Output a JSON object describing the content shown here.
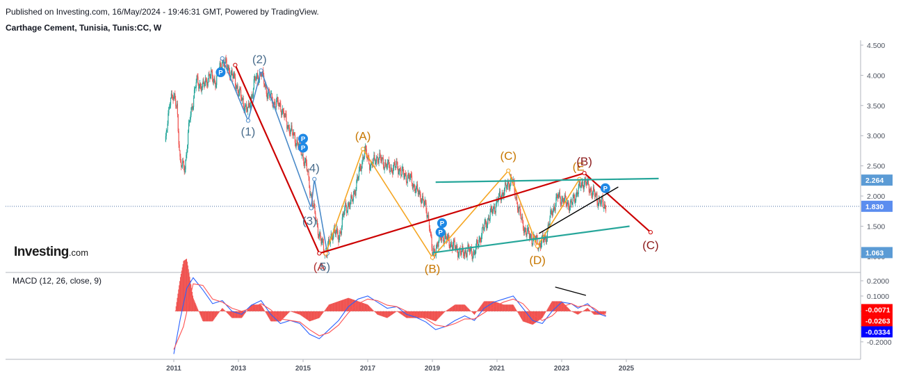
{
  "header": {
    "published": "Published on Investing.com, 16/May/2024 - 19:46:31 GMT, Powered by TradingView.",
    "symbol": "Carthage Cement, Tunisia, Tunis:CC, W"
  },
  "logo": {
    "brand": "Investing",
    "suffix": ".com"
  },
  "colors": {
    "red": "#cc0000",
    "orange": "#f5a623",
    "blue_wave": "#4a8ac9",
    "teal": "#26a69a",
    "black": "#000000",
    "candle_up": "#26a69a",
    "candle_down": "#ef5350",
    "macd_line": "#2962ff",
    "signal_line": "#ff5252",
    "hist": "#ef5350",
    "price_badge_top": "#5b9bd5",
    "price_badge_last": "#5b8def",
    "macd_badge_red": "#ff0000",
    "macd_badge_blue": "#0000ff"
  },
  "chart_data": [
    {
      "type": "line",
      "panel": "price",
      "title": "Carthage Cement, Tunisia, Tunis:CC, W",
      "x_ticks": [
        "2011",
        "2013",
        "2015",
        "2017",
        "2019",
        "2021",
        "2023",
        "2025"
      ],
      "y_ticks": [
        "1.000",
        "1.500",
        "2.000",
        "2.500",
        "3.000",
        "3.500",
        "4.000",
        "4.500"
      ],
      "ylim": [
        0.78,
        4.58
      ],
      "price_labels": [
        "2.264",
        "1.830",
        "1.063"
      ],
      "last_price": 1.83,
      "series": [
        {
          "points": [
            [
              2010.75,
              2.9
            ],
            [
              2010.9,
              3.7
            ],
            [
              2011.1,
              3.5
            ],
            [
              2011.2,
              2.5
            ],
            [
              2011.35,
              2.5
            ],
            [
              2011.5,
              3.3
            ],
            [
              2011.7,
              3.9
            ],
            [
              2011.9,
              3.8
            ],
            [
              2012.1,
              4.0
            ],
            [
              2012.3,
              3.9
            ],
            [
              2012.5,
              4.25
            ],
            [
              2012.7,
              4.1
            ],
            [
              2012.9,
              3.9
            ],
            [
              2013.1,
              3.6
            ],
            [
              2013.3,
              3.4
            ],
            [
              2013.5,
              3.9
            ],
            [
              2013.7,
              4.05
            ],
            [
              2013.9,
              3.7
            ],
            [
              2014.1,
              3.55
            ],
            [
              2014.3,
              3.5
            ],
            [
              2014.5,
              3.2
            ],
            [
              2014.7,
              3.0
            ],
            [
              2014.9,
              2.8
            ],
            [
              2015.1,
              2.5
            ],
            [
              2015.25,
              2.0
            ],
            [
              2015.4,
              1.6
            ],
            [
              2015.55,
              1.25
            ],
            [
              2015.7,
              1.05
            ],
            [
              2015.8,
              1.2
            ],
            [
              2015.95,
              1.45
            ],
            [
              2016.1,
              1.3
            ],
            [
              2016.3,
              1.8
            ],
            [
              2016.5,
              1.9
            ],
            [
              2016.7,
              2.3
            ],
            [
              2016.9,
              2.75
            ],
            [
              2017.1,
              2.5
            ],
            [
              2017.3,
              2.65
            ],
            [
              2017.5,
              2.55
            ],
            [
              2017.7,
              2.45
            ],
            [
              2017.9,
              2.5
            ],
            [
              2018.1,
              2.35
            ],
            [
              2018.3,
              2.3
            ],
            [
              2018.5,
              2.1
            ],
            [
              2018.7,
              1.95
            ],
            [
              2018.9,
              1.6
            ],
            [
              2019.0,
              1.0
            ],
            [
              2019.15,
              1.2
            ],
            [
              2019.3,
              1.35
            ],
            [
              2019.5,
              1.25
            ],
            [
              2019.7,
              1.15
            ],
            [
              2019.9,
              1.05
            ],
            [
              2020.1,
              1.1
            ],
            [
              2020.3,
              1.05
            ],
            [
              2020.5,
              1.35
            ],
            [
              2020.7,
              1.6
            ],
            [
              2020.9,
              1.8
            ],
            [
              2021.1,
              2.0
            ],
            [
              2021.3,
              2.15
            ],
            [
              2021.45,
              2.3
            ],
            [
              2021.6,
              1.95
            ],
            [
              2021.75,
              1.6
            ],
            [
              2021.9,
              1.4
            ],
            [
              2022.1,
              1.3
            ],
            [
              2022.3,
              1.2
            ],
            [
              2022.5,
              1.3
            ],
            [
              2022.7,
              1.75
            ],
            [
              2022.9,
              2.0
            ],
            [
              2023.1,
              1.9
            ],
            [
              2023.3,
              1.85
            ],
            [
              2023.5,
              2.1
            ],
            [
              2023.7,
              2.25
            ],
            [
              2023.9,
              2.1
            ],
            [
              2024.1,
              1.95
            ],
            [
              2024.3,
              1.85
            ],
            [
              2024.37,
              1.83
            ]
          ],
          "color": "#26a69a"
        }
      ],
      "wave_labels": [
        {
          "text": "(1)",
          "x": 2013.3,
          "y": 3.0,
          "color": "#4a6d8c"
        },
        {
          "text": "(2)",
          "x": 2013.65,
          "y": 4.2,
          "color": "#4a6d8c"
        },
        {
          "text": "(3)",
          "x": 2015.2,
          "y": 1.52,
          "color": "#4a6d8c"
        },
        {
          "text": "4)",
          "x": 2015.35,
          "y": 2.4,
          "color": "#4a6d8c"
        },
        {
          "text": "(A)",
          "x": 2016.85,
          "y": 2.93,
          "color": "#c77700"
        },
        {
          "text": "(A",
          "x": 2015.5,
          "y": 0.76,
          "color": "#b03030"
        },
        {
          "text": "5)",
          "x": 2015.68,
          "y": 0.76,
          "color": "#4a6d8c"
        },
        {
          "text": "(B)",
          "x": 2019.0,
          "y": 0.73,
          "color": "#c77700"
        },
        {
          "text": "(C)",
          "x": 2021.35,
          "y": 2.6,
          "color": "#c77700"
        },
        {
          "text": "(D)",
          "x": 2022.25,
          "y": 0.87,
          "color": "#c77700"
        },
        {
          "text": "(E",
          "x": 2023.52,
          "y": 2.42,
          "color": "#c77700"
        },
        {
          "text": "(B)",
          "x": 2023.7,
          "y": 2.51,
          "color": "#8b1a1a"
        },
        {
          "text": "(C)",
          "x": 2025.75,
          "y": 1.12,
          "color": "#8b1a1a"
        }
      ]
    },
    {
      "type": "line",
      "panel": "macd",
      "title": "MACD (12, 26, close, 9)",
      "y_ticks": [
        "0.2000",
        "0.1000",
        "0.0000",
        "-0.1000",
        "-0.2000"
      ],
      "ylim": [
        -0.31,
        0.25
      ],
      "value_labels": [
        "-0.0071",
        "-0.0263",
        "-0.0334"
      ],
      "series": [
        {
          "name": "MACD",
          "values": [
            [
              2011.0,
              -0.28
            ],
            [
              2011.2,
              -0.05
            ],
            [
              2011.4,
              0.15
            ],
            [
              2011.6,
              0.22
            ],
            [
              2011.9,
              0.14
            ],
            [
              2012.2,
              0.05
            ],
            [
              2012.5,
              0.07
            ],
            [
              2012.8,
              0.0
            ],
            [
              2013.1,
              -0.02
            ],
            [
              2013.4,
              0.04
            ],
            [
              2013.7,
              0.07
            ],
            [
              2014.0,
              -0.02
            ],
            [
              2014.3,
              -0.08
            ],
            [
              2014.6,
              -0.06
            ],
            [
              2014.9,
              -0.08
            ],
            [
              2015.2,
              -0.15
            ],
            [
              2015.5,
              -0.18
            ],
            [
              2015.8,
              -0.12
            ],
            [
              2016.1,
              -0.06
            ],
            [
              2016.4,
              0.03
            ],
            [
              2016.7,
              0.08
            ],
            [
              2017.0,
              0.1
            ],
            [
              2017.3,
              0.06
            ],
            [
              2017.6,
              0.02
            ],
            [
              2017.9,
              0.03
            ],
            [
              2018.2,
              -0.02
            ],
            [
              2018.5,
              -0.04
            ],
            [
              2018.8,
              -0.07
            ],
            [
              2019.1,
              -0.12
            ],
            [
              2019.4,
              -0.1
            ],
            [
              2019.7,
              -0.06
            ],
            [
              2020.0,
              -0.03
            ],
            [
              2020.3,
              -0.06
            ],
            [
              2020.6,
              0.02
            ],
            [
              2020.9,
              0.06
            ],
            [
              2021.2,
              0.08
            ],
            [
              2021.5,
              0.1
            ],
            [
              2021.8,
              0.02
            ],
            [
              2022.1,
              -0.06
            ],
            [
              2022.4,
              -0.08
            ],
            [
              2022.7,
              0.0
            ],
            [
              2023.0,
              0.06
            ],
            [
              2023.3,
              0.05
            ],
            [
              2023.5,
              0.02
            ],
            [
              2023.8,
              0.05
            ],
            [
              2024.0,
              0.01
            ],
            [
              2024.2,
              -0.02
            ],
            [
              2024.37,
              -0.0334
            ]
          ],
          "color": "#2962ff"
        },
        {
          "name": "Signal",
          "values": [
            [
              2011.0,
              -0.25
            ],
            [
              2011.3,
              -0.1
            ],
            [
              2011.6,
              0.18
            ],
            [
              2011.9,
              0.17
            ],
            [
              2012.2,
              0.08
            ],
            [
              2012.5,
              0.06
            ],
            [
              2012.8,
              0.02
            ],
            [
              2013.1,
              0.0
            ],
            [
              2013.4,
              0.02
            ],
            [
              2013.7,
              0.05
            ],
            [
              2014.0,
              0.01
            ],
            [
              2014.3,
              -0.05
            ],
            [
              2014.6,
              -0.06
            ],
            [
              2014.9,
              -0.07
            ],
            [
              2015.2,
              -0.12
            ],
            [
              2015.5,
              -0.16
            ],
            [
              2015.8,
              -0.14
            ],
            [
              2016.1,
              -0.09
            ],
            [
              2016.4,
              -0.01
            ],
            [
              2016.7,
              0.05
            ],
            [
              2017.0,
              0.08
            ],
            [
              2017.3,
              0.07
            ],
            [
              2017.6,
              0.04
            ],
            [
              2017.9,
              0.03
            ],
            [
              2018.2,
              0.0
            ],
            [
              2018.5,
              -0.02
            ],
            [
              2018.8,
              -0.05
            ],
            [
              2019.1,
              -0.09
            ],
            [
              2019.4,
              -0.1
            ],
            [
              2019.7,
              -0.08
            ],
            [
              2020.0,
              -0.05
            ],
            [
              2020.3,
              -0.05
            ],
            [
              2020.6,
              -0.01
            ],
            [
              2020.9,
              0.03
            ],
            [
              2021.2,
              0.06
            ],
            [
              2021.5,
              0.08
            ],
            [
              2021.8,
              0.05
            ],
            [
              2022.1,
              -0.02
            ],
            [
              2022.4,
              -0.06
            ],
            [
              2022.7,
              -0.03
            ],
            [
              2023.0,
              0.03
            ],
            [
              2023.3,
              0.05
            ],
            [
              2023.5,
              0.03
            ],
            [
              2023.8,
              0.04
            ],
            [
              2024.0,
              0.02
            ],
            [
              2024.2,
              -0.01
            ],
            [
              2024.37,
              -0.0263
            ]
          ],
          "color": "#ff5252"
        }
      ]
    }
  ]
}
